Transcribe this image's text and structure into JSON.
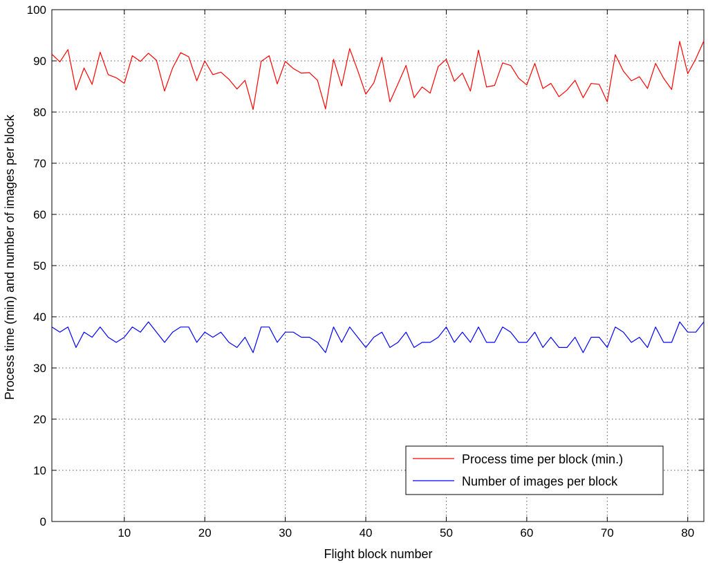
{
  "chart_data": {
    "type": "line",
    "title": "",
    "xlabel": "Flight block number",
    "ylabel": "Process time (min) and number of images per block",
    "xlim": [
      1,
      82
    ],
    "ylim": [
      0,
      100
    ],
    "xticks": [
      10,
      20,
      30,
      40,
      50,
      60,
      70,
      80
    ],
    "yticks": [
      0,
      10,
      20,
      30,
      40,
      50,
      60,
      70,
      80,
      90,
      100
    ],
    "grid": true,
    "legend_position": "bottom-right",
    "x": [
      1,
      2,
      3,
      4,
      5,
      6,
      7,
      8,
      9,
      10,
      11,
      12,
      13,
      14,
      15,
      16,
      17,
      18,
      19,
      20,
      21,
      22,
      23,
      24,
      25,
      26,
      27,
      28,
      29,
      30,
      31,
      32,
      33,
      34,
      35,
      36,
      37,
      38,
      39,
      40,
      41,
      42,
      43,
      44,
      45,
      46,
      47,
      48,
      49,
      50,
      51,
      52,
      53,
      54,
      55,
      56,
      57,
      58,
      59,
      60,
      61,
      62,
      63,
      64,
      65,
      66,
      67,
      68,
      69,
      70,
      71,
      72,
      73,
      74,
      75,
      76,
      77,
      78,
      79,
      80,
      81,
      82
    ],
    "series": [
      {
        "name": "Process time per block (min.)",
        "color": "#ff0000",
        "values": [
          91.3,
          89.8,
          92.2,
          84.3,
          88.6,
          85.4,
          91.7,
          87.3,
          86.7,
          85.6,
          91.0,
          89.9,
          91.5,
          90.1,
          84.1,
          88.6,
          91.6,
          90.8,
          86.1,
          90.0,
          87.3,
          87.8,
          86.4,
          84.5,
          86.2,
          80.5,
          89.9,
          91.0,
          85.5,
          89.9,
          88.5,
          87.6,
          87.7,
          86.2,
          80.6,
          90.3,
          85.1,
          92.4,
          88.1,
          83.5,
          85.7,
          90.7,
          82.0,
          85.5,
          89.1,
          82.8,
          84.9,
          83.7,
          88.9,
          90.3,
          86.0,
          87.6,
          84.1,
          92.1,
          84.9,
          85.2,
          89.6,
          89.1,
          86.6,
          85.3,
          89.5,
          84.6,
          85.6,
          83.0,
          84.3,
          86.2,
          82.8,
          85.6,
          85.4,
          82.0,
          91.2,
          88.0,
          86.1,
          86.9,
          84.6,
          89.5,
          86.6,
          84.4,
          93.8,
          87.5,
          90.4,
          93.9
        ]
      },
      {
        "name": "Number of images per block",
        "color": "#0000ff",
        "values": [
          38,
          37,
          38,
          34,
          37,
          36,
          38,
          36,
          35,
          36,
          38,
          37,
          39,
          37,
          35,
          37,
          38,
          38,
          35,
          37,
          36,
          37,
          35,
          34,
          36,
          33,
          38,
          38,
          35,
          37,
          37,
          36,
          36,
          35,
          33,
          38,
          35,
          38,
          36,
          34,
          36,
          37,
          34,
          35,
          37,
          34,
          35,
          35,
          36,
          38,
          35,
          37,
          35,
          38,
          35,
          35,
          38,
          37,
          35,
          35,
          37,
          34,
          36,
          34,
          34,
          36,
          33,
          36,
          36,
          34,
          38,
          37,
          35,
          36,
          34,
          38,
          35,
          35,
          39,
          37,
          37,
          39
        ]
      }
    ]
  }
}
